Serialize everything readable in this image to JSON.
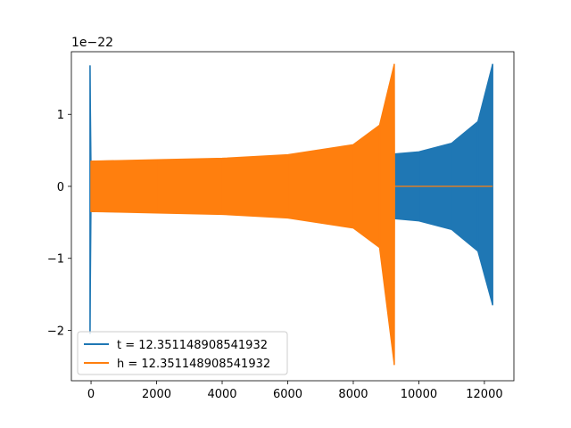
{
  "chart_data": {
    "type": "line",
    "title": "",
    "xlabel": "",
    "ylabel": "",
    "offset_label": "1e−22",
    "xlim": [
      -600,
      12900
    ],
    "ylim": [
      -2.7,
      1.87
    ],
    "x_ticks": [
      0,
      2000,
      4000,
      6000,
      8000,
      10000,
      12000
    ],
    "x_tick_labels": [
      "0",
      "2000",
      "4000",
      "6000",
      "8000",
      "10000",
      "12000"
    ],
    "y_ticks": [
      -2,
      -1,
      0,
      1
    ],
    "y_tick_labels": [
      "−2",
      "−1",
      "0",
      "1"
    ],
    "grid": false,
    "legend_position": "lower-left",
    "series": [
      {
        "name": "t = 12.351148908541932",
        "color": "#1f77b4",
        "envelope": [
          {
            "x": -30,
            "upper": 1.68,
            "lower": -2.05
          },
          {
            "x": 0,
            "upper": 0.35,
            "lower": -0.35
          },
          {
            "x": 2000,
            "upper": 0.36,
            "lower": -0.36
          },
          {
            "x": 4000,
            "upper": 0.37,
            "lower": -0.37
          },
          {
            "x": 6000,
            "upper": 0.38,
            "lower": -0.38
          },
          {
            "x": 9250,
            "upper": 0.45,
            "lower": -0.45
          },
          {
            "x": 10000,
            "upper": 0.48,
            "lower": -0.48
          },
          {
            "x": 11000,
            "upper": 0.6,
            "lower": -0.6
          },
          {
            "x": 11800,
            "upper": 0.9,
            "lower": -0.9
          },
          {
            "x": 12250,
            "upper": 1.7,
            "lower": -1.65
          }
        ]
      },
      {
        "name": "h = 12.351148908541932",
        "color": "#ff7f0e",
        "envelope": [
          {
            "x": 0,
            "upper": 0.35,
            "lower": -0.35
          },
          {
            "x": 2000,
            "upper": 0.37,
            "lower": -0.37
          },
          {
            "x": 4000,
            "upper": 0.39,
            "lower": -0.39
          },
          {
            "x": 6000,
            "upper": 0.44,
            "lower": -0.44
          },
          {
            "x": 8000,
            "upper": 0.58,
            "lower": -0.58
          },
          {
            "x": 8800,
            "upper": 0.85,
            "lower": -0.85
          },
          {
            "x": 9250,
            "upper": 1.7,
            "lower": -2.48
          },
          {
            "x": 9260,
            "upper": 0.0,
            "lower": 0.0
          },
          {
            "x": 12250,
            "upper": 0.0,
            "lower": 0.0
          }
        ]
      }
    ]
  }
}
